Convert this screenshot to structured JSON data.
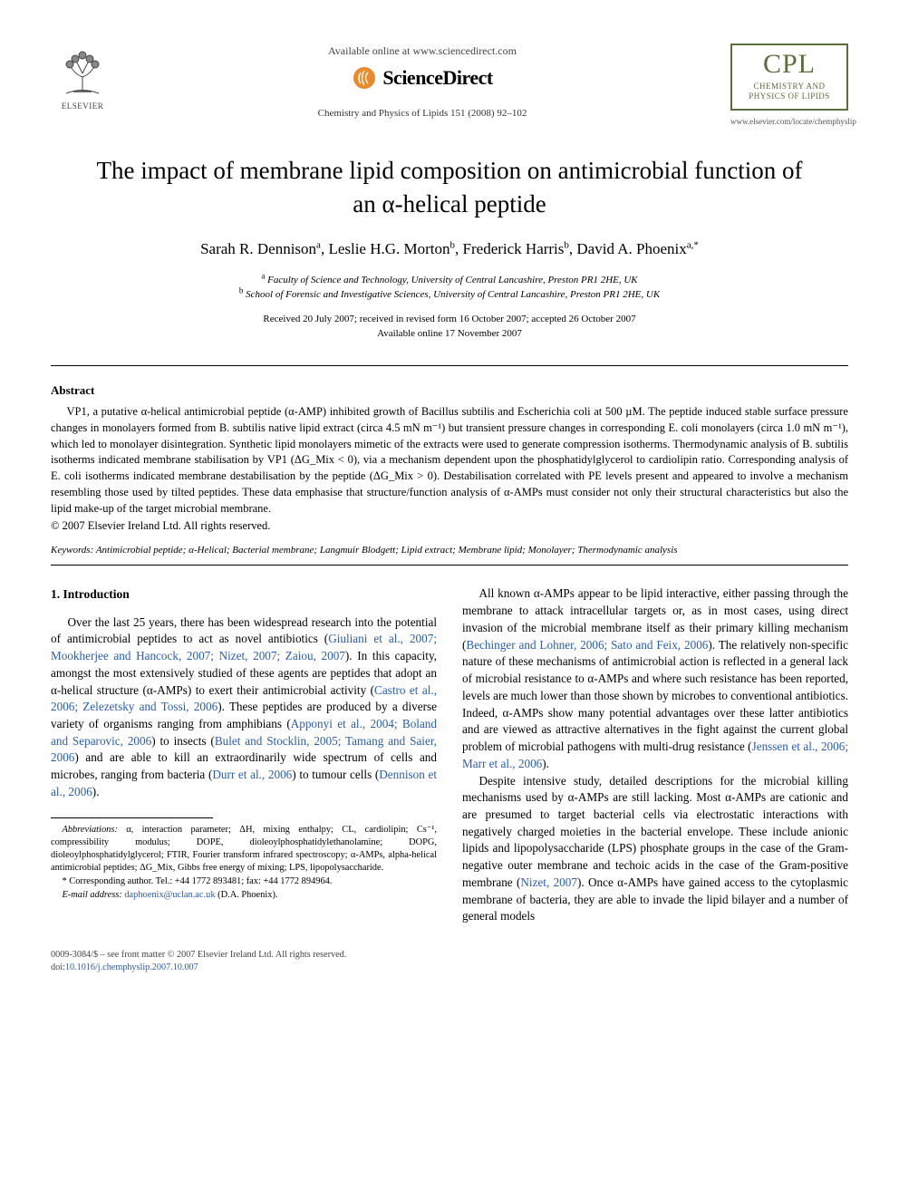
{
  "colors": {
    "text": "#000000",
    "background": "#ffffff",
    "link": "#2a5db0",
    "journal_brand": "#5a6d3b",
    "pub_logo": "#e98a2b"
  },
  "typography": {
    "base_family": "Times New Roman",
    "title_pt": 27,
    "authors_pt": 17,
    "body_pt": 13.2,
    "abstract_pt": 12.5,
    "footnote_pt": 10.4
  },
  "header": {
    "publisher_name": "ELSEVIER",
    "available_line": "Available online at www.sciencedirect.com",
    "platform_name": "ScienceDirect",
    "journal_reference": "Chemistry and Physics of Lipids 151 (2008) 92–102",
    "journal_abbrev": "CPL",
    "journal_full_line1": "CHEMISTRY AND",
    "journal_full_line2": "PHYSICS OF LIPIDS",
    "journal_url": "www.elsevier.com/locate/chemphyslip"
  },
  "article": {
    "title": "The impact of membrane lipid composition on antimicrobial function of an α-helical peptide",
    "authors_html": "Sarah R. Dennison<sup>a</sup>, Leslie H.G. Morton<sup>b</sup>, Frederick Harris<sup>b</sup>, David A. Phoenix<sup>a,*</sup>",
    "affiliations": [
      {
        "key": "a",
        "text": "Faculty of Science and Technology, University of Central Lancashire, Preston PR1 2HE, UK"
      },
      {
        "key": "b",
        "text": "School of Forensic and Investigative Sciences, University of Central Lancashire, Preston PR1 2HE, UK"
      }
    ],
    "history_line1": "Received 20 July 2007; received in revised form 16 October 2007; accepted 26 October 2007",
    "history_line2": "Available online 17 November 2007"
  },
  "abstract": {
    "heading": "Abstract",
    "body": "VP1, a putative α-helical antimicrobial peptide (α-AMP) inhibited growth of Bacillus subtilis and Escherichia coli at 500 µM. The peptide induced stable surface pressure changes in monolayers formed from B. subtilis native lipid extract (circa 4.5 mN m⁻¹) but transient pressure changes in corresponding E. coli monolayers (circa 1.0 mN m⁻¹), which led to monolayer disintegration. Synthetic lipid monolayers mimetic of the extracts were used to generate compression isotherms. Thermodynamic analysis of B. subtilis isotherms indicated membrane stabilisation by VP1 (ΔG_Mix < 0), via a mechanism dependent upon the phosphatidylglycerol to cardiolipin ratio. Corresponding analysis of E. coli isotherms indicated membrane destabilisation by the peptide (ΔG_Mix > 0). Destabilisation correlated with PE levels present and appeared to involve a mechanism resembling those used by tilted peptides. These data emphasise that structure/function analysis of α-AMPs must consider not only their structural characteristics but also the lipid make-up of the target microbial membrane.",
    "copyright": "© 2007 Elsevier Ireland Ltd. All rights reserved."
  },
  "keywords": {
    "label": "Keywords:",
    "list": "Antimicrobial peptide; α-Helical; Bacterial membrane; Langmuir Blodgett; Lipid extract; Membrane lipid; Monolayer; Thermodynamic analysis"
  },
  "section": {
    "number_title": "1.  Introduction"
  },
  "body_left": {
    "p1_a": "Over the last 25 years, there has been widespread research into the potential of antimicrobial peptides to act as novel antibiotics (",
    "p1_c1": "Giuliani et al., 2007; Mookherjee and Hancock, 2007; Nizet, 2007; Zaiou, 2007",
    "p1_b": "). In this capacity, amongst the most extensively studied of these agents are peptides that adopt an α-helical structure (α-AMPs) to exert their antimicrobial activity (",
    "p1_c2": "Castro et al., 2006; Zelezetsky and Tossi, 2006",
    "p1_c": "). These peptides are produced by a diverse variety of organisms ranging from amphibians (",
    "p1_c3": "Apponyi et al., 2004; Boland and Separovic, 2006",
    "p1_d": ") to insects (",
    "p1_c4": "Bulet and Stocklin, 2005; Tamang and Saier, 2006",
    "p1_e": ") and are able to kill an extraordinarily wide spectrum of cells and microbes, ranging from bacteria (",
    "p1_c5": "Durr et al., 2006",
    "p1_f": ") to tumour cells (",
    "p1_c6": "Dennison et al., 2006",
    "p1_g": ")."
  },
  "body_right": {
    "p1_a": "All known α-AMPs appear to be lipid interactive, either passing through the membrane to attack intracellular targets or, as in most cases, using direct invasion of the microbial membrane itself as their primary killing mechanism (",
    "p1_c1": "Bechinger and Lohner, 2006; Sato and Feix, 2006",
    "p1_b": "). The relatively non-specific nature of these mechanisms of antimicrobial action is reflected in a general lack of microbial resistance to α-AMPs and where such resistance has been reported, levels are much lower than those shown by microbes to conventional antibiotics. Indeed, α-AMPs show many potential advantages over these latter antibiotics and are viewed as attractive alternatives in the fight against the current global problem of microbial pathogens with multi-drug resistance (",
    "p1_c2": "Jenssen et al., 2006; Marr et al., 2006",
    "p1_c": ").",
    "p2_a": "Despite intensive study, detailed descriptions for the microbial killing mechanisms used by α-AMPs are still lacking. Most α-AMPs are cationic and are presumed to target bacterial cells via electrostatic interactions with negatively charged moieties in the bacterial envelope. These include anionic lipids and lipopolysaccharide (LPS) phosphate groups in the case of the Gram-negative outer membrane and techoic acids in the case of the Gram-positive membrane (",
    "p2_c1": "Nizet, 2007",
    "p2_b": "). Once α-AMPs have gained access to the cytoplasmic membrane of bacteria, they are able to invade the lipid bilayer and a number of general models"
  },
  "footnotes": {
    "abbrev_label": "Abbreviations:",
    "abbrev_text": " α, interaction parameter; ΔH, mixing enthalpy; CL, cardiolipin; Cs⁻¹, compressibility modulus; DOPE, dioleoylphosphatidylethanolamine; DOPG, dioleoylphosphatidylglycerol; FTIR, Fourier transform infrared spectroscopy; α-AMPs, alpha-helical antimicrobial peptides; ΔG_Mix, Gibbs free energy of mixing; LPS, lipopolysaccharide.",
    "corr_label": "* Corresponding author.",
    "corr_text": " Tel.: +44 1772 893481; fax: +44 1772 894964.",
    "email_label": "E-mail address:",
    "email_value": "daphoenix@uclan.ac.uk",
    "email_who": " (D.A. Phoenix)."
  },
  "footer": {
    "line1": "0009-3084/$ – see front matter © 2007 Elsevier Ireland Ltd. All rights reserved.",
    "doi_label": "doi:",
    "doi": "10.1016/j.chemphyslip.2007.10.007"
  }
}
